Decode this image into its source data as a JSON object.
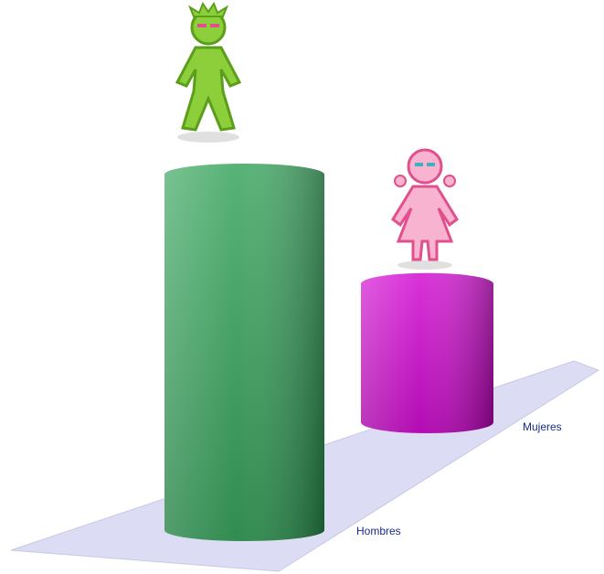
{
  "chart_data": {
    "type": "bar",
    "categories": [
      "Hombres",
      "Mujeres"
    ],
    "values": [
      72,
      28
    ],
    "colors": [
      "#2ea055",
      "#d000d0"
    ]
  }
}
